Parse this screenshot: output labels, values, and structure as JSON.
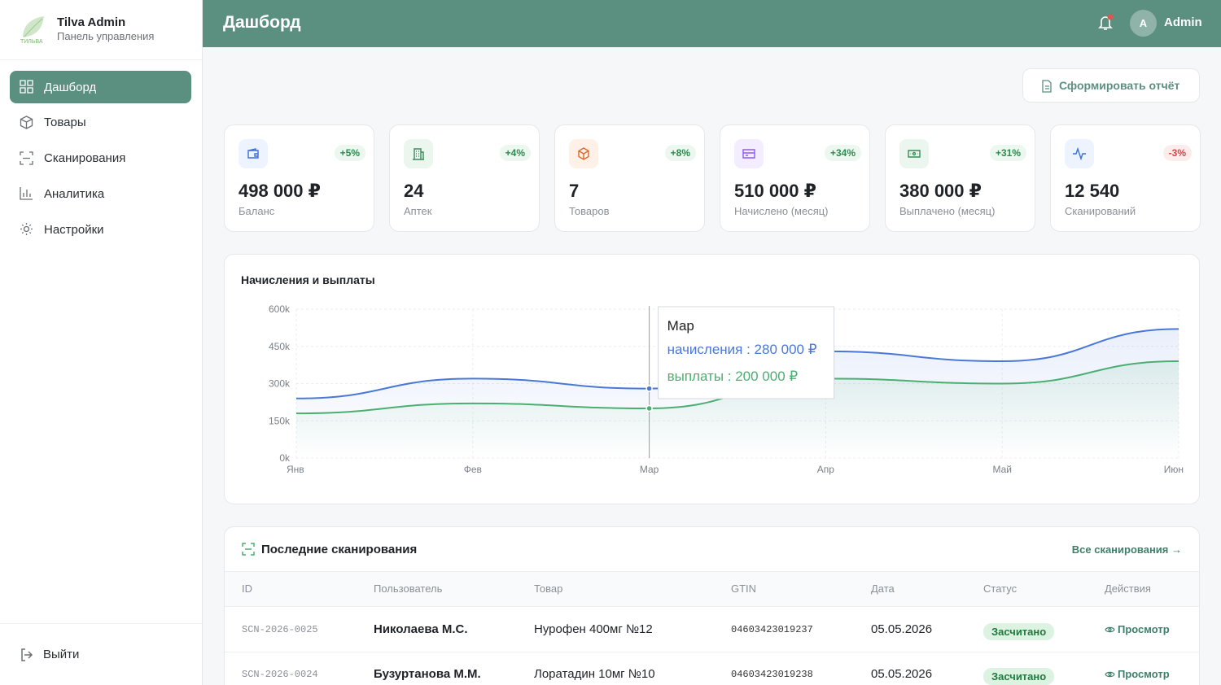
{
  "sidebar": {
    "logo_text": "ТИЛЬВА",
    "title": "Tilva Admin",
    "subtitle": "Панель управления",
    "nav": [
      "Дашборд",
      "Товары",
      "Сканирования",
      "Аналитика",
      "Настройки"
    ],
    "logout": "Выйти"
  },
  "header": {
    "title": "Дашборд",
    "avatar": "A",
    "user": "Admin"
  },
  "report_button": "Сформировать отчёт",
  "stats": [
    {
      "change": "+5%",
      "value": "498 000 ₽",
      "label": "Баланс"
    },
    {
      "change": "+4%",
      "value": "24",
      "label": "Аптек"
    },
    {
      "change": "+8%",
      "value": "7",
      "label": "Товаров"
    },
    {
      "change": "+34%",
      "value": "510 000 ₽",
      "label": "Начислено (месяц)"
    },
    {
      "change": "+31%",
      "value": "380 000 ₽",
      "label": "Выплачено (месяц)"
    },
    {
      "change": "-3%",
      "value": "12 540",
      "label": "Сканирований"
    }
  ],
  "chart_data": {
    "type": "area",
    "title": "Начисления и выплаты",
    "categories": [
      "Янв",
      "Фев",
      "Мар",
      "Апр",
      "Май",
      "Июн"
    ],
    "series": [
      {
        "name": "начисления",
        "color": "#4a78d9",
        "values": [
          240000,
          320000,
          280000,
          430000,
          390000,
          520000
        ]
      },
      {
        "name": "выплаты",
        "color": "#4caf72",
        "values": [
          180000,
          220000,
          200000,
          320000,
          300000,
          390000
        ]
      }
    ],
    "ylim": [
      0,
      600000
    ],
    "yticks": [
      {
        "value": 0,
        "label": "0k"
      },
      {
        "value": 150000,
        "label": "150k"
      },
      {
        "value": 300000,
        "label": "300k"
      },
      {
        "value": 450000,
        "label": "450k"
      },
      {
        "value": 600000,
        "label": "600k"
      }
    ],
    "grid": true,
    "tooltip": {
      "category_index": 2,
      "title": "Мар",
      "lines": [
        "начисления : 280 000 ₽",
        "выплаты : 200 000 ₽"
      ]
    }
  },
  "table": {
    "title": "Последние сканирования",
    "link": "Все сканирования →",
    "columns": [
      "ID",
      "Пользователь",
      "Товар",
      "GTIN",
      "Дата",
      "Статус",
      "Действия"
    ],
    "rows": [
      [
        "SCN-2026-0025",
        "Николаева М.С.",
        "Нурофен 400мг №12",
        "04603423019237",
        "05.05.2026",
        "Засчитано",
        "Просмотр"
      ],
      [
        "SCN-2026-0024",
        "Бузуртанова М.М.",
        "Лоратадин 10мг №10",
        "04603423019238",
        "05.05.2026",
        "Засчитано",
        "Просмотр"
      ]
    ]
  }
}
